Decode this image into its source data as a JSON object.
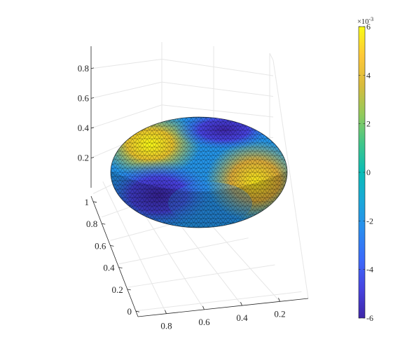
{
  "chart_data": {
    "type": "surface",
    "view": "3-D perspective",
    "grid": true,
    "colormap": "parula",
    "z_axis": {
      "range": [
        0,
        0.95
      ],
      "ticks": [
        0.2,
        0.4,
        0.6,
        0.8
      ],
      "tick_labels": [
        "0.2",
        "0.4",
        "0.6",
        "0.8"
      ]
    },
    "y_axis": {
      "range": [
        -0.05,
        1.05
      ],
      "ticks": [
        0,
        0.2,
        0.4,
        0.6,
        0.8,
        1
      ],
      "tick_labels": [
        "0",
        "0.2",
        "0.4",
        "0.6",
        "0.8",
        "1"
      ]
    },
    "x_axis": {
      "range": [
        0.05,
        0.95
      ],
      "ticks": [
        0.8,
        0.6,
        0.4,
        0.2
      ],
      "tick_labels": [
        "0.8",
        "0.6",
        "0.4",
        "0.2"
      ]
    },
    "colorbar": {
      "location": "right",
      "range": [
        -6,
        6
      ],
      "ticks": [
        6,
        4,
        2,
        0,
        -2,
        -4,
        -6
      ],
      "tick_labels": [
        "6",
        "4",
        "2",
        "0",
        "-2",
        "-4",
        "-6"
      ],
      "exponent_label": "×10",
      "exponent": "-3"
    },
    "surface": {
      "shape": "flattened ellipsoid, triangulated mesh with dark edges",
      "features": [
        {
          "sign": "positive",
          "value": 0.006,
          "region": "upper-left"
        },
        {
          "sign": "positive",
          "value": 0.005,
          "region": "right"
        },
        {
          "sign": "negative",
          "value": -0.006,
          "region": "lower-left"
        },
        {
          "sign": "negative",
          "value": -0.006,
          "region": "top-right"
        }
      ]
    }
  },
  "colors": {
    "parula": [
      "#3e26a8",
      "#4743e0",
      "#3b69fa",
      "#2a8bef",
      "#1aa7d9",
      "#09bcb6",
      "#40c689",
      "#93ca5b",
      "#d9bb3c",
      "#fec838",
      "#f9fb15"
    ],
    "grid": "#e6e6e6",
    "axis": "#262626",
    "mesh": "#000000"
  }
}
